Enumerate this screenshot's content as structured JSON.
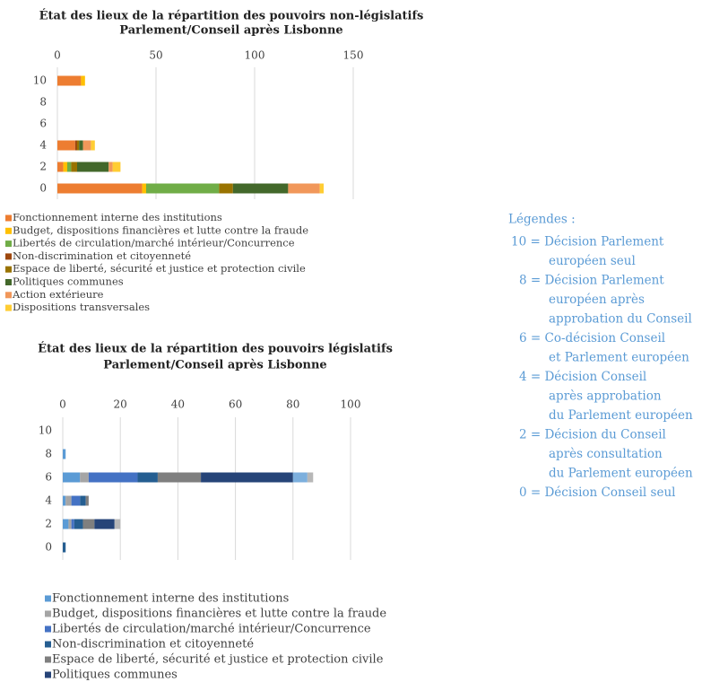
{
  "chart_data": [
    {
      "type": "bar",
      "orientation": "horizontal",
      "stacked": true,
      "title": [
        "État des lieux de la répartition des pouvoirs non-législatifs",
        "Parlement/Conseil après Lisbonne"
      ],
      "categories": [
        "0",
        "2",
        "4",
        "6",
        "8",
        "10"
      ],
      "xlim": [
        0,
        150
      ],
      "xticks": [
        0,
        50,
        100,
        150
      ],
      "grid": true,
      "series": [
        {
          "name": "Fonctionnement interne des institutions",
          "color": "#ed7d31",
          "values": [
            43,
            3,
            9,
            0,
            0,
            12
          ]
        },
        {
          "name": "Budget, dispositions financières et lutte contre la fraude",
          "color": "#ffc000",
          "values": [
            2,
            2,
            0,
            0,
            0,
            2
          ]
        },
        {
          "name": "Libertés de circulation/marché intérieur/Concurrence",
          "color": "#70ad47",
          "values": [
            37,
            2,
            0,
            0,
            0,
            0
          ]
        },
        {
          "name": "Non-discrimination et citoyenneté",
          "color": "#9e480e",
          "values": [
            0,
            0,
            1,
            0,
            0,
            0
          ]
        },
        {
          "name": "Espace de liberté, sécurité et justice et protection civile",
          "color": "#997300",
          "values": [
            7,
            3,
            1,
            0,
            0,
            0
          ]
        },
        {
          "name": "Politiques communes",
          "color": "#43682b",
          "values": [
            28,
            16,
            2,
            0,
            0,
            0
          ]
        },
        {
          "name": "Action extérieure",
          "color": "#f1975a",
          "values": [
            16,
            2,
            4,
            0,
            0,
            0
          ]
        },
        {
          "name": "Dispositions transversales",
          "color": "#ffcd33",
          "values": [
            2,
            4,
            2,
            0,
            0,
            0
          ]
        }
      ]
    },
    {
      "type": "bar",
      "orientation": "horizontal",
      "stacked": true,
      "title": [
        "État des lieux de la répartition des pouvoirs législatifs",
        "Parlement/Conseil après Lisbonne"
      ],
      "categories": [
        "0",
        "2",
        "4",
        "6",
        "8",
        "10"
      ],
      "xlim": [
        0,
        100
      ],
      "xticks": [
        0,
        20,
        40,
        60,
        80,
        100
      ],
      "grid": true,
      "series": [
        {
          "name": "Fonctionnement interne des institutions",
          "color": "#5b9bd5",
          "values": [
            0,
            2,
            1,
            6,
            1,
            0
          ]
        },
        {
          "name": "Budget, dispositions financières et lutte contre la fraude",
          "color": "#a5a5a5",
          "values": [
            0,
            1,
            2,
            3,
            0,
            0
          ]
        },
        {
          "name": "Libertés de circulation/marché intérieur/Concurrence",
          "color": "#4472c4",
          "values": [
            0,
            1,
            3,
            17,
            0,
            0
          ]
        },
        {
          "name": "Non-discrimination et citoyenneté",
          "color": "#255e91",
          "values": [
            1,
            3,
            2,
            7,
            0,
            0
          ]
        },
        {
          "name": "Espace de liberté, sécurité et justice et protection civile",
          "color": "#7f7f7f",
          "values": [
            0,
            4,
            1,
            15,
            0,
            0
          ]
        },
        {
          "name": "Politiques communes",
          "color": "#264478",
          "values": [
            0,
            7,
            0,
            32,
            0,
            0
          ]
        },
        {
          "color": "#7cafdd",
          "values": [
            0,
            0,
            0,
            5,
            0,
            0
          ]
        },
        {
          "color": "#b7b7b7",
          "values": [
            0,
            2,
            0,
            2,
            0,
            0
          ]
        }
      ]
    }
  ],
  "legend_box": {
    "title": "Légendes :",
    "entries": [
      [
        "10 = Décision Parlement",
        "européen seul"
      ],
      [
        "8 = Décision Parlement",
        "européen après",
        "approbation du Conseil"
      ],
      [
        "6 = Co-décision Conseil",
        "et Parlement européen"
      ],
      [
        "4 = Décision Conseil",
        "après approbation",
        "du Parlement européen"
      ],
      [
        "2 = Décision du Conseil",
        "après consultation",
        "du Parlement européen"
      ],
      [
        "0 = Décision Conseil seul"
      ]
    ]
  }
}
